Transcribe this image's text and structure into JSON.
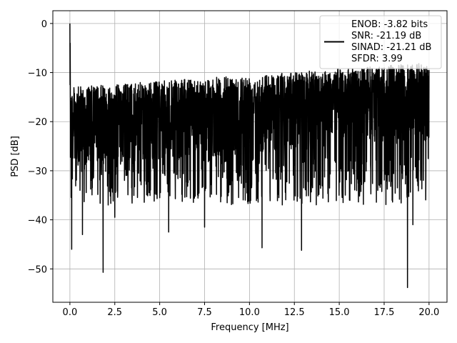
{
  "chart_data": {
    "type": "line",
    "xlabel": "Frequency [MHz]",
    "ylabel": "PSD [dB]",
    "xlim": [
      -0.95,
      21.0
    ],
    "ylim": [
      -56.8,
      2.6
    ],
    "xticks": [
      0.0,
      2.5,
      5.0,
      7.5,
      10.0,
      12.5,
      15.0,
      17.5,
      20.0
    ],
    "xtick_labels": [
      "0.0",
      "2.5",
      "5.0",
      "7.5",
      "10.0",
      "12.5",
      "15.0",
      "17.5",
      "20.0"
    ],
    "yticks": [
      0,
      -10,
      -20,
      -30,
      -40,
      -50
    ],
    "ytick_labels": [
      "0",
      "−10",
      "−20",
      "−30",
      "−40",
      "−50"
    ],
    "grid": true,
    "legend_position": "top-right",
    "series": [
      {
        "name": "ENOB: -3.82 bits\nSNR: -21.19 dB\nSINAD: -21.21 dB\nSFDR: 3.99",
        "legend_lines": [
          "ENOB: -3.82 bits",
          "SNR: -21.19 dB",
          "SINAD: -21.21 dB",
          "SFDR: 3.99"
        ],
        "color": "#000000",
        "description_points": {
          "peak": [
            0.0,
            0.0
          ],
          "envelope_upper_start": -13,
          "envelope_upper_end": -8,
          "envelope_lower_typical": -30,
          "deep_notches": [
            [
              0.1,
              -46
            ],
            [
              0.7,
              -43
            ],
            [
              1.85,
              -50.7
            ],
            [
              2.5,
              -39.5
            ],
            [
              5.5,
              -42.5
            ],
            [
              7.5,
              -41.5
            ],
            [
              10.7,
              -45.7
            ],
            [
              12.9,
              -46.2
            ],
            [
              18.8,
              -53.8
            ],
            [
              19.1,
              -41
            ]
          ]
        }
      }
    ]
  }
}
